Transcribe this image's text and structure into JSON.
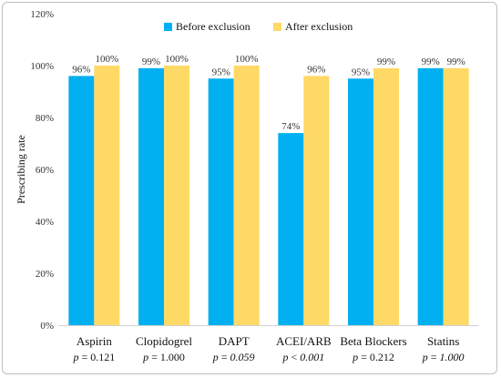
{
  "chart_data": {
    "type": "bar",
    "categories": [
      "Aspirin",
      "Clopidogrel",
      "DAPT",
      "ACEI/ARB",
      "Beta Blockers",
      "Statins"
    ],
    "p_values": [
      {
        "text": "p = 0.121",
        "italic_value": false
      },
      {
        "text": "p = 1.000",
        "italic_value": false
      },
      {
        "text": "p = 0.059",
        "italic_value": true
      },
      {
        "text": "p < 0.001",
        "italic_value": true
      },
      {
        "text": "p = 0.212",
        "italic_value": false
      },
      {
        "text": "p = 1.000",
        "italic_value": true
      }
    ],
    "series": [
      {
        "name": "Before exclusion",
        "color": "#00b0f0",
        "values": [
          96,
          99,
          95,
          74,
          95,
          99
        ],
        "labels": [
          "96%",
          "99%",
          "95%",
          "74%",
          "95%",
          "99%"
        ]
      },
      {
        "name": "After exclusion",
        "color": "#ffd966",
        "values": [
          100,
          100,
          100,
          96,
          99,
          99
        ],
        "labels": [
          "100%",
          "100%",
          "100%",
          "96%",
          "99%",
          "99%"
        ]
      }
    ],
    "ylabel": "Prescribing rate",
    "yticks": [
      "0%",
      "20%",
      "40%",
      "60%",
      "80%",
      "100%",
      "120%"
    ],
    "ylim": [
      0,
      120
    ],
    "grid": false,
    "legend_position": "top"
  }
}
